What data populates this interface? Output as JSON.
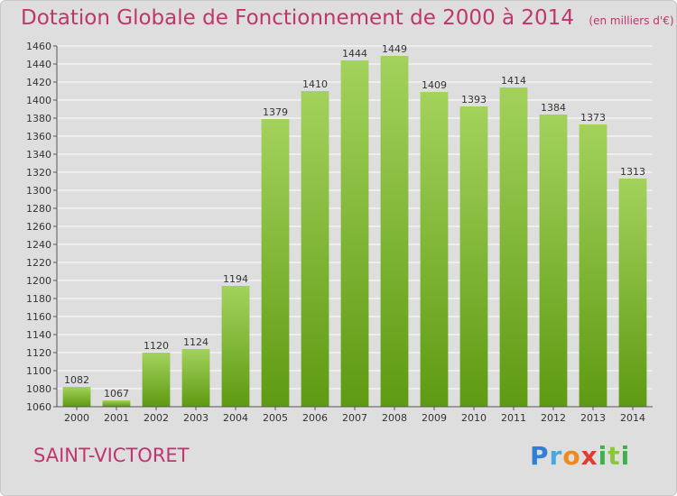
{
  "title": "Dotation Globale de Fonctionnement de 2000 à 2014",
  "subtitle": "(en milliers d'€)",
  "place": "SAINT-VICTORET",
  "logo": {
    "text": "Proxiti",
    "letters": [
      {
        "char": "P",
        "color": "#2f7fd3"
      },
      {
        "char": "r",
        "color": "#4aa8e0"
      },
      {
        "char": "o",
        "color": "#f08a1c"
      },
      {
        "char": "x",
        "color": "#e23b2f"
      },
      {
        "char": "i",
        "color": "#3db24a"
      },
      {
        "char": "t",
        "color": "#8cc63f"
      },
      {
        "char": "i",
        "color": "#3db24a"
      }
    ]
  },
  "colors": {
    "title": "#c0356d",
    "background": "#dedede",
    "bar_top": "#a3d25c",
    "bar_bottom": "#5e9a12",
    "grid": "#ffffff",
    "text": "#333333"
  },
  "chart_data": {
    "type": "bar",
    "title": "Dotation Globale de Fonctionnement de 2000 à 2014",
    "subtitle": "(en milliers d'€)",
    "xlabel": "",
    "ylabel": "",
    "categories": [
      "2000",
      "2001",
      "2002",
      "2003",
      "2004",
      "2005",
      "2006",
      "2007",
      "2008",
      "2009",
      "2010",
      "2011",
      "2012",
      "2013",
      "2014"
    ],
    "values": [
      1082,
      1067,
      1120,
      1124,
      1194,
      1379,
      1410,
      1444,
      1449,
      1409,
      1393,
      1414,
      1384,
      1373,
      1313
    ],
    "ylim": [
      1060,
      1460
    ],
    "yticks": [
      1060,
      1080,
      1100,
      1120,
      1140,
      1160,
      1180,
      1200,
      1220,
      1240,
      1260,
      1280,
      1300,
      1320,
      1340,
      1360,
      1380,
      1400,
      1420,
      1440,
      1460
    ],
    "grid": true,
    "legend": "none"
  }
}
